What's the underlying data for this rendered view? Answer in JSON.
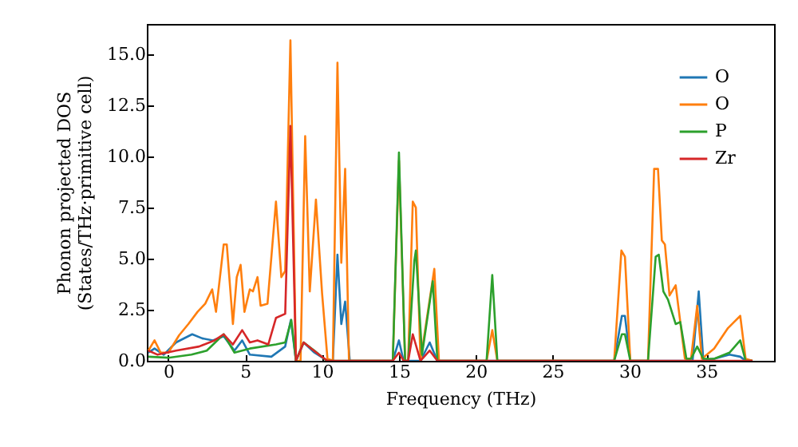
{
  "chart_data": {
    "type": "line",
    "xlabel": "Frequency (THz)",
    "ylabel": "Phonon projected DOS\n(States/THz·primitive cell)",
    "xlim": [
      -1.4,
      39.4
    ],
    "ylim": [
      0,
      16.5
    ],
    "xticks": [
      0,
      5,
      10,
      15,
      20,
      25,
      30,
      35
    ],
    "yticks": [
      {
        "value": 0,
        "label": "0.0"
      },
      {
        "value": 2.5,
        "label": "2.5"
      },
      {
        "value": 5,
        "label": "5.0"
      },
      {
        "value": 7.5,
        "label": "7.5"
      },
      {
        "value": 10,
        "label": "10.0"
      },
      {
        "value": 12.5,
        "label": "12.5"
      },
      {
        "value": 15,
        "label": "15.0"
      }
    ],
    "grid": false,
    "legend": "top right",
    "marker": "none",
    "line_style": "solid",
    "series": [
      {
        "name": "O",
        "color": "#1f77b4",
        "x": [
          -1.3,
          -0.9,
          -0.3,
          0.5,
          1.55,
          2.2,
          2.9,
          3.6,
          4.3,
          4.8,
          5.3,
          6.7,
          7.6,
          7.97,
          8.3,
          8.8,
          9.5,
          10.35,
          10.7,
          11.0,
          11.25,
          11.5,
          11.8,
          14.6,
          15.0,
          15.3,
          16.4,
          17.0,
          17.5,
          29.0,
          29.5,
          29.7,
          30.05,
          34.1,
          34.5,
          34.8,
          35.5,
          36.5,
          37.2,
          37.55,
          38.0
        ],
        "values": [
          0.4,
          0.6,
          0.3,
          0.9,
          1.3,
          1.1,
          1.0,
          1.2,
          0.5,
          1.0,
          0.3,
          0.2,
          0.7,
          2.0,
          0,
          0.9,
          0.4,
          0,
          0,
          5.2,
          1.8,
          2.9,
          0,
          0,
          1.0,
          0,
          0,
          0.9,
          0,
          0,
          2.2,
          2.2,
          0,
          0,
          3.4,
          0,
          0.1,
          0.3,
          0.2,
          0,
          0
        ]
      },
      {
        "name": "O",
        "color": "#ff7f0e",
        "x": [
          -1.3,
          -0.9,
          -0.5,
          0,
          0.7,
          1.3,
          1.9,
          2.4,
          2.85,
          3.1,
          3.6,
          3.8,
          4.2,
          4.45,
          4.7,
          4.95,
          5.3,
          5.5,
          5.8,
          6.0,
          6.45,
          7.0,
          7.35,
          7.6,
          7.94,
          8.3,
          8.6,
          8.9,
          9.2,
          9.6,
          10.0,
          10.35,
          10.7,
          11.0,
          11.25,
          11.5,
          11.75,
          14.6,
          15.0,
          15.4,
          15.6,
          15.9,
          16.1,
          16.4,
          16.7,
          17.3,
          17.6,
          20.7,
          21.07,
          21.4,
          29.0,
          29.47,
          29.7,
          30.05,
          31.2,
          31.6,
          31.85,
          32.1,
          32.3,
          32.6,
          33.0,
          33.2,
          33.6,
          34.0,
          34.4,
          34.7,
          35.5,
          36.4,
          36.8,
          37.2,
          37.55,
          38.0
        ],
        "values": [
          0.5,
          1.0,
          0.4,
          0.4,
          1.25,
          1.8,
          2.4,
          2.8,
          3.5,
          2.4,
          5.7,
          5.7,
          1.8,
          4.1,
          4.7,
          2.4,
          3.5,
          3.4,
          4.1,
          2.7,
          2.8,
          7.8,
          4.1,
          4.4,
          15.7,
          0,
          0,
          11.0,
          3.4,
          7.9,
          3.3,
          0.1,
          0,
          14.6,
          4.8,
          9.4,
          0,
          0,
          9.8,
          0,
          0,
          7.8,
          7.5,
          0,
          1.5,
          4.5,
          0,
          0,
          1.5,
          0,
          0,
          5.4,
          5.1,
          0,
          0,
          9.4,
          9.4,
          5.9,
          5.7,
          3.2,
          3.7,
          2.5,
          0.1,
          0.1,
          2.7,
          0.1,
          0.6,
          1.6,
          1.9,
          2.2,
          0.1,
          0
        ]
      },
      {
        "name": "P",
        "color": "#2ca02c",
        "x": [
          -1.3,
          0,
          1.5,
          2.5,
          3.6,
          4.3,
          5.3,
          7.0,
          7.6,
          8.0,
          8.3,
          8.8,
          9.5,
          10.3,
          14.6,
          15.0,
          15.4,
          15.6,
          16.0,
          16.1,
          16.5,
          17.2,
          17.5,
          20.7,
          21.07,
          21.4,
          29.0,
          29.5,
          29.7,
          30.05,
          31.2,
          31.7,
          31.9,
          32.2,
          32.5,
          33.0,
          33.3,
          33.7,
          34.0,
          34.4,
          34.8,
          35.5,
          36.5,
          37.2,
          37.55,
          38.0
        ],
        "values": [
          0.2,
          0.15,
          0.3,
          0.5,
          1.3,
          0.4,
          0.6,
          0.8,
          0.9,
          2.0,
          0,
          0.9,
          0.5,
          0,
          0,
          10.2,
          0,
          0,
          4.9,
          5.4,
          0.3,
          3.9,
          0,
          0,
          4.2,
          0,
          0,
          1.3,
          1.3,
          0,
          0,
          5.1,
          5.2,
          3.4,
          3.0,
          1.8,
          1.9,
          0.1,
          0.1,
          0.7,
          0.1,
          0.1,
          0.4,
          1.0,
          0,
          0
        ]
      },
      {
        "name": "Zr",
        "color": "#d62728",
        "x": [
          -1.3,
          -0.7,
          0.5,
          2.0,
          3.0,
          3.6,
          4.2,
          4.8,
          5.3,
          5.8,
          6.5,
          7.0,
          7.6,
          7.94,
          8.3,
          8.8,
          9.3,
          9.8,
          10.35,
          14.6,
          15.0,
          15.3,
          15.6,
          15.9,
          16.4,
          17.0,
          17.5,
          38.0
        ],
        "values": [
          0.5,
          0.3,
          0.5,
          0.7,
          1.0,
          1.3,
          0.8,
          1.5,
          0.9,
          1.0,
          0.8,
          2.1,
          2.3,
          11.5,
          0,
          0.9,
          0.6,
          0.3,
          0,
          0,
          0.4,
          0,
          0,
          1.3,
          0,
          0.5,
          0,
          0
        ]
      }
    ]
  }
}
